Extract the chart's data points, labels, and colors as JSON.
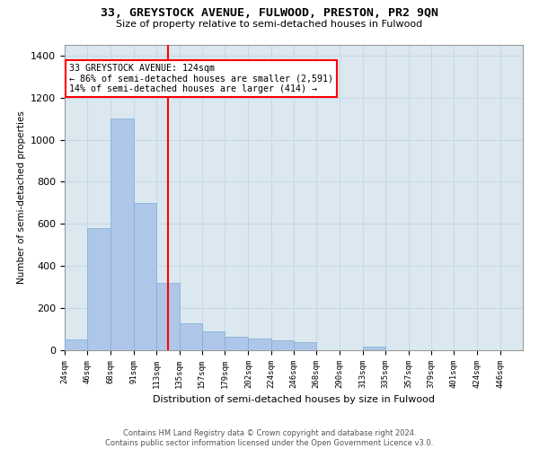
{
  "title": "33, GREYSTOCK AVENUE, FULWOOD, PRESTON, PR2 9QN",
  "subtitle": "Size of property relative to semi-detached houses in Fulwood",
  "xlabel": "Distribution of semi-detached houses by size in Fulwood",
  "ylabel": "Number of semi-detached properties",
  "footer1": "Contains HM Land Registry data © Crown copyright and database right 2024.",
  "footer2": "Contains public sector information licensed under the Open Government Licence v3.0.",
  "bar_color": "#aec6e8",
  "bar_edge_color": "#7aafd4",
  "grid_color": "#c8d8ea",
  "background_color": "#dce8f0",
  "red_line_x": 124,
  "annotation_line1": "33 GREYSTOCK AVENUE: 124sqm",
  "annotation_line2": "← 86% of semi-detached houses are smaller (2,591)",
  "annotation_line3": "14% of semi-detached houses are larger (414) →",
  "bins": [
    24,
    46,
    68,
    91,
    113,
    135,
    157,
    179,
    202,
    224,
    246,
    268,
    290,
    313,
    335,
    357,
    379,
    401,
    424,
    446,
    468
  ],
  "values": [
    50,
    580,
    1100,
    700,
    320,
    130,
    90,
    65,
    55,
    45,
    40,
    0,
    0,
    15,
    0,
    0,
    0,
    0,
    0,
    0
  ],
  "ylim": [
    0,
    1450
  ],
  "yticks": [
    0,
    200,
    400,
    600,
    800,
    1000,
    1200,
    1400
  ]
}
